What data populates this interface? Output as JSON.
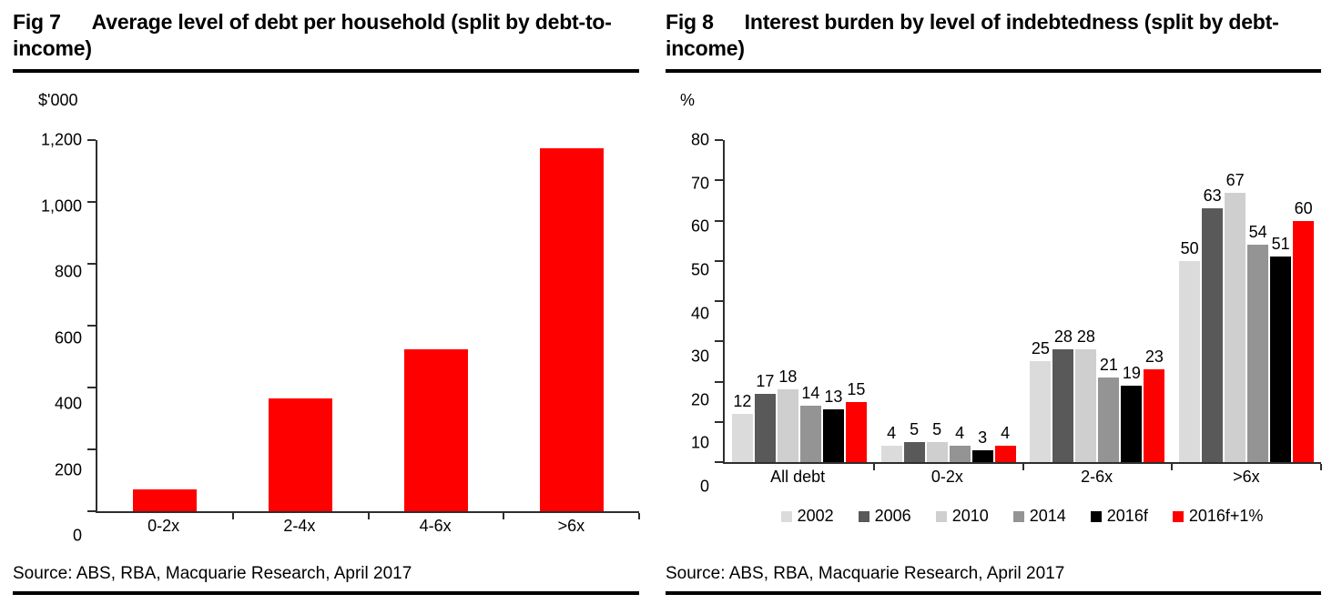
{
  "chart_data": [
    {
      "type": "bar",
      "fig_label": "Fig 7",
      "title": "Average level of debt per household (split by debt-to-income)",
      "unit_label": "$'000",
      "categories": [
        "0-2x",
        "2-4x",
        "4-6x",
        ">6x"
      ],
      "values": [
        70,
        365,
        525,
        1175
      ],
      "bar_color": "#FF0000",
      "ylim": [
        0,
        1200
      ],
      "ytick_step": 200,
      "yticks": [
        "0",
        "200",
        "400",
        "600",
        "800",
        "1,000",
        "1,200"
      ],
      "grid": false,
      "data_labels": false,
      "source": "Source: ABS, RBA, Macquarie Research, April 2017"
    },
    {
      "type": "bar",
      "fig_label": "Fig 8",
      "title": "Interest burden by level of indebtedness (split by debt-income)",
      "unit_label": "%",
      "categories": [
        "All debt",
        "0-2x",
        "2-6x",
        ">6x"
      ],
      "series": [
        {
          "name": "2002",
          "color": "#DBDBDB",
          "values": [
            12,
            4,
            25,
            50
          ]
        },
        {
          "name": "2006",
          "color": "#595959",
          "values": [
            17,
            5,
            28,
            63
          ]
        },
        {
          "name": "2010",
          "color": "#CFCFCF",
          "values": [
            18,
            5,
            28,
            67
          ]
        },
        {
          "name": "2014",
          "color": "#949494",
          "values": [
            14,
            4,
            21,
            54
          ]
        },
        {
          "name": "2016f",
          "color": "#000000",
          "values": [
            13,
            3,
            19,
            51
          ]
        },
        {
          "name": "2016f+1%",
          "color": "#FF0000",
          "values": [
            15,
            4,
            23,
            60
          ]
        }
      ],
      "ylim": [
        0,
        80
      ],
      "ytick_step": 10,
      "yticks": [
        "0",
        "10",
        "20",
        "30",
        "40",
        "50",
        "60",
        "70",
        "80"
      ],
      "grid": false,
      "data_labels": true,
      "legend_position": "bottom",
      "source": "Source: ABS, RBA, Macquarie Research, April 2017"
    }
  ]
}
